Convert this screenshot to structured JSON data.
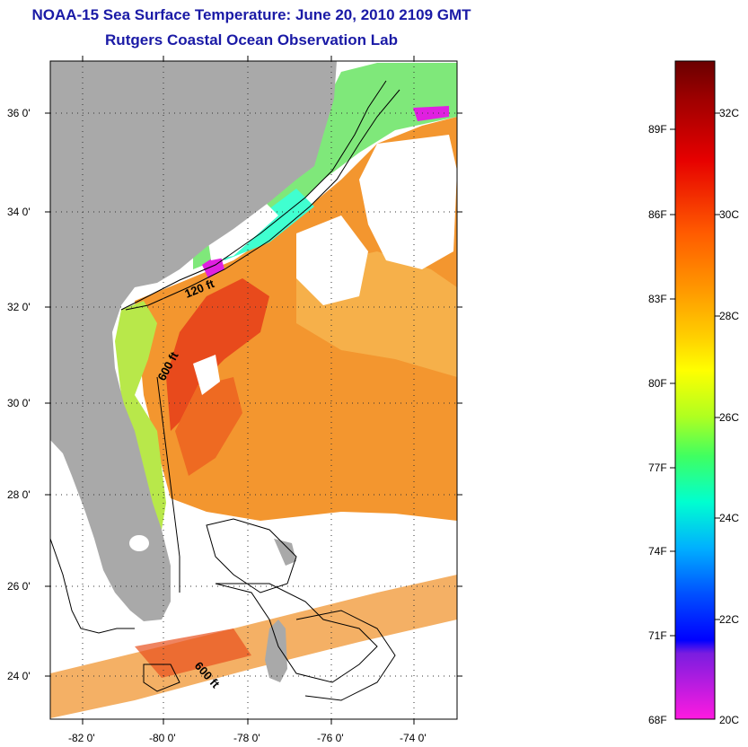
{
  "title": {
    "line1": "NOAA-15 Sea Surface Temperature:  June 20, 2010 2109 GMT",
    "line2": "Rutgers Coastal Ocean Observation Lab"
  },
  "map": {
    "lat_labels": [
      "36 0'",
      "34 0'",
      "32 0'",
      "30 0'",
      "28 0'",
      "26 0'",
      "24 0'"
    ],
    "lon_labels": [
      "-82 0'",
      "-80 0'",
      "-78 0'",
      "-76 0'",
      "-74 0'"
    ],
    "contour_labels": [
      "120 ft",
      "600 ft",
      "600 ft"
    ],
    "colors": {
      "land": "#a9a9a9",
      "warm_water": "#f08a2a",
      "hot_water": "#e8401c",
      "cloud": "#ffffff"
    }
  },
  "colorbar": {
    "fahrenheit_labels": [
      "89F",
      "86F",
      "83F",
      "80F",
      "77F",
      "74F",
      "71F",
      "68F"
    ],
    "celsius_labels": [
      "32C",
      "30C",
      "28C",
      "26C",
      "24C",
      "22C",
      "20C"
    ],
    "range_c": [
      20,
      33.5
    ]
  }
}
